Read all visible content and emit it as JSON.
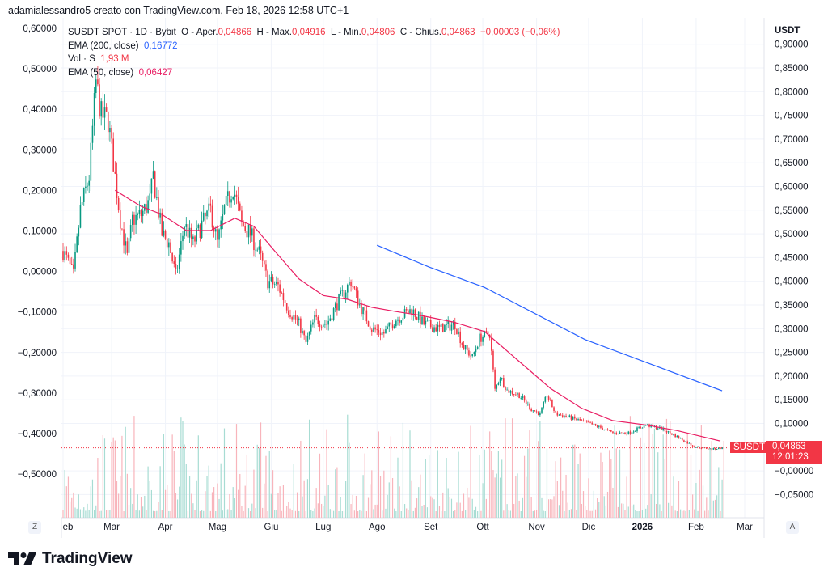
{
  "header": {
    "attribution": "adamialessandro5 creato con TradingView.com, Feb 18, 2026 12:58 UTC+1"
  },
  "legend": {
    "symbol": "SUSDT SPOT · 1D · Bybit",
    "open_label": "O - Aper.",
    "open": "0,04866",
    "high_label": "H - Max.",
    "high": "0,04916",
    "low_label": "L - Min.",
    "low": "0,04806",
    "close_label": "C - Chius.",
    "close": "0,04863",
    "change": "−0,00003 (−0,06%)",
    "ema200_label": "EMA (200, close)",
    "ema200_value": "0,16772",
    "vol_label": "Vol · S",
    "vol_value": "1,93 M",
    "ema50_label": "EMA (50, close)",
    "ema50_value": "0,06427"
  },
  "price_label": {
    "symbol": "SUSDT",
    "price": "0,04863",
    "countdown": "12:01:23"
  },
  "axis_buttons": {
    "left": "Z",
    "right": "A"
  },
  "logo": {
    "text": "TradingView"
  },
  "colors": {
    "up": "#089981",
    "down": "#f23645",
    "ema200": "#2962ff",
    "ema50": "#e91e63",
    "grid": "#f0f3fa"
  },
  "chart_data": {
    "type": "candlestick",
    "right_axis": {
      "unit": "USDT",
      "ticks": [
        "0,90000",
        "0,85000",
        "0,80000",
        "0,75000",
        "0,70000",
        "0,65000",
        "0,60000",
        "0,55000",
        "0,50000",
        "0,45000",
        "0,40000",
        "0,35000",
        "0,30000",
        "0,25000",
        "0,20000",
        "0,15000",
        "0,10000",
        "−0,00000",
        "−0,05000"
      ],
      "range": [
        -0.08,
        0.94
      ]
    },
    "left_axis": {
      "ticks": [
        "0,60000",
        "0,50000",
        "0,40000",
        "0,30000",
        "0,20000",
        "0,10000",
        "0,00000",
        "−0,10000",
        "−0,20000",
        "−0,30000",
        "−0,40000",
        "−0,50000"
      ]
    },
    "x_ticks": [
      {
        "label": "eb",
        "date": "2025-02-01"
      },
      {
        "label": "Mar",
        "date": "2025-03-01"
      },
      {
        "label": "Apr",
        "date": "2025-04-01"
      },
      {
        "label": "Mag",
        "date": "2025-05-01"
      },
      {
        "label": "Giu",
        "date": "2025-06-01"
      },
      {
        "label": "Lug",
        "date": "2025-07-01"
      },
      {
        "label": "Ago",
        "date": "2025-08-01"
      },
      {
        "label": "Set",
        "date": "2025-09-01"
      },
      {
        "label": "Ott",
        "date": "2025-10-01"
      },
      {
        "label": "Nov",
        "date": "2025-11-01"
      },
      {
        "label": "Dic",
        "date": "2025-12-01"
      },
      {
        "label": "2026",
        "date": "2026-01-01",
        "bold": true
      },
      {
        "label": "Feb",
        "date": "2026-02-01"
      },
      {
        "label": "Mar",
        "date": "2026-03-01"
      }
    ],
    "close_path": [
      [
        "2025-02-01",
        0.464
      ],
      [
        "2025-02-07",
        0.413
      ],
      [
        "2025-02-11",
        0.55
      ],
      [
        "2025-02-16",
        0.62
      ],
      [
        "2025-02-20",
        0.82
      ],
      [
        "2025-02-23",
        0.75
      ],
      [
        "2025-02-27",
        0.74
      ],
      [
        "2025-03-02",
        0.65
      ],
      [
        "2025-03-06",
        0.53
      ],
      [
        "2025-03-10",
        0.45
      ],
      [
        "2025-03-13",
        0.53
      ],
      [
        "2025-03-18",
        0.54
      ],
      [
        "2025-03-23",
        0.57
      ],
      [
        "2025-03-25",
        0.62
      ],
      [
        "2025-03-30",
        0.5
      ],
      [
        "2025-04-03",
        0.48
      ],
      [
        "2025-04-07",
        0.41
      ],
      [
        "2025-04-12",
        0.52
      ],
      [
        "2025-04-17",
        0.48
      ],
      [
        "2025-04-22",
        0.52
      ],
      [
        "2025-04-27",
        0.55
      ],
      [
        "2025-05-01",
        0.48
      ],
      [
        "2025-05-05",
        0.55
      ],
      [
        "2025-05-10",
        0.6
      ],
      [
        "2025-05-15",
        0.52
      ],
      [
        "2025-05-20",
        0.5
      ],
      [
        "2025-05-25",
        0.46
      ],
      [
        "2025-05-30",
        0.4
      ],
      [
        "2025-06-05",
        0.39
      ],
      [
        "2025-06-11",
        0.34
      ],
      [
        "2025-06-17",
        0.31
      ],
      [
        "2025-06-21",
        0.27
      ],
      [
        "2025-06-26",
        0.32
      ],
      [
        "2025-07-03",
        0.31
      ],
      [
        "2025-07-10",
        0.36
      ],
      [
        "2025-07-17",
        0.4
      ],
      [
        "2025-07-22",
        0.35
      ],
      [
        "2025-07-29",
        0.3
      ],
      [
        "2025-08-05",
        0.29
      ],
      [
        "2025-08-12",
        0.32
      ],
      [
        "2025-08-21",
        0.34
      ],
      [
        "2025-08-28",
        0.31
      ],
      [
        "2025-09-06",
        0.3
      ],
      [
        "2025-09-15",
        0.31
      ],
      [
        "2025-09-20",
        0.26
      ],
      [
        "2025-09-25",
        0.24
      ],
      [
        "2025-09-29",
        0.28
      ],
      [
        "2025-10-05",
        0.29
      ],
      [
        "2025-10-08",
        0.17
      ],
      [
        "2025-10-11",
        0.2
      ],
      [
        "2025-10-15",
        0.17
      ],
      [
        "2025-10-22",
        0.16
      ],
      [
        "2025-10-29",
        0.13
      ],
      [
        "2025-11-03",
        0.12
      ],
      [
        "2025-11-07",
        0.16
      ],
      [
        "2025-11-12",
        0.12
      ],
      [
        "2025-11-19",
        0.114
      ],
      [
        "2025-11-26",
        0.106
      ],
      [
        "2025-12-06",
        0.094
      ],
      [
        "2025-12-15",
        0.08
      ],
      [
        "2025-12-24",
        0.08
      ],
      [
        "2026-01-03",
        0.097
      ],
      [
        "2026-01-12",
        0.089
      ],
      [
        "2026-01-21",
        0.072
      ],
      [
        "2026-01-31",
        0.051
      ],
      [
        "2026-02-10",
        0.046
      ],
      [
        "2026-02-17",
        0.04863
      ]
    ],
    "series": [
      {
        "name": "EMA (200, close)",
        "color": "#2962ff",
        "points": [
          [
            "2025-08-01",
            0.476
          ],
          [
            "2025-08-31",
            0.43
          ],
          [
            "2025-10-02",
            0.387
          ],
          [
            "2025-11-29",
            0.277
          ],
          [
            "2026-02-16",
            0.169
          ]
        ]
      },
      {
        "name": "EMA (50, close)",
        "color": "#e91e63",
        "points": [
          [
            "2025-03-03",
            0.592
          ],
          [
            "2025-03-18",
            0.558
          ],
          [
            "2025-03-30",
            0.541
          ],
          [
            "2025-04-13",
            0.507
          ],
          [
            "2025-04-27",
            0.507
          ],
          [
            "2025-05-11",
            0.533
          ],
          [
            "2025-05-22",
            0.516
          ],
          [
            "2025-06-03",
            0.464
          ],
          [
            "2025-06-17",
            0.405
          ],
          [
            "2025-07-01",
            0.37
          ],
          [
            "2025-07-15",
            0.362
          ],
          [
            "2025-07-29",
            0.345
          ],
          [
            "2025-08-12",
            0.336
          ],
          [
            "2025-08-26",
            0.328
          ],
          [
            "2025-09-14",
            0.314
          ],
          [
            "2025-10-02",
            0.294
          ],
          [
            "2025-10-21",
            0.234
          ],
          [
            "2025-11-09",
            0.174
          ],
          [
            "2025-11-27",
            0.132
          ],
          [
            "2025-12-15",
            0.106
          ],
          [
            "2026-01-03",
            0.097
          ],
          [
            "2026-01-21",
            0.085
          ],
          [
            "2026-02-15",
            0.063
          ]
        ]
      }
    ],
    "grid": true
  }
}
